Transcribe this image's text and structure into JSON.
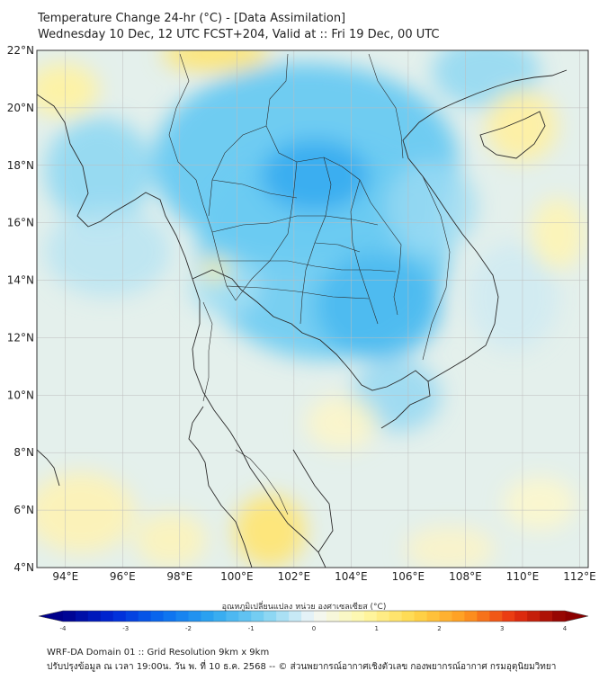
{
  "title": {
    "line1": "Temperature Change 24-hr (°C) - [Data Assimilation]",
    "line2": "Wednesday 10 Dec, 12 UTC FCST+204, Valid at :: Fri 19 Dec, 00 UTC"
  },
  "map": {
    "lat_range": [
      4,
      22
    ],
    "lon_range": [
      93,
      112.3
    ],
    "lat_ticks": [
      "22°N",
      "20°N",
      "18°N",
      "16°N",
      "14°N",
      "12°N",
      "10°N",
      "8°N",
      "6°N",
      "4°N"
    ],
    "lon_ticks": [
      "94°E",
      "96°E",
      "98°E",
      "100°E",
      "102°E",
      "104°E",
      "106°E",
      "108°E",
      "110°E",
      "112°E"
    ],
    "grid": true,
    "ocean_color": "#e4f0ec",
    "coast_color": "#2a2a2a"
  },
  "colorbar": {
    "title": "อุณหภูมิเปลี่ยนแปลง หน่วย องศาเซลเซียส (°C)",
    "ticks": [
      "-4",
      "-3",
      "-2",
      "-1",
      "0",
      "1",
      "2",
      "3",
      "4"
    ],
    "range": [
      -4,
      4
    ],
    "colors": [
      "#00008b",
      "#0028d8",
      "#0a6ef0",
      "#2fa8f0",
      "#7ed2f2",
      "#f2f7f8",
      "#fff8a8",
      "#ffd84a",
      "#ff9a20",
      "#e83010",
      "#8b0000"
    ]
  },
  "footer": {
    "line1": "WRF-DA Domain 01 :: Grid Resolution 9km x 9km",
    "line2": "ปรับปรุงข้อมูล ณ เวลา 19:00น. วัน พ. ที่ 10 ธ.ค. 2568 -- © ส่วนพยากรณ์อากาศเชิงตัวเลข กองพยากรณ์อากาศ กรมอุตุนิยมวิทยา"
  }
}
